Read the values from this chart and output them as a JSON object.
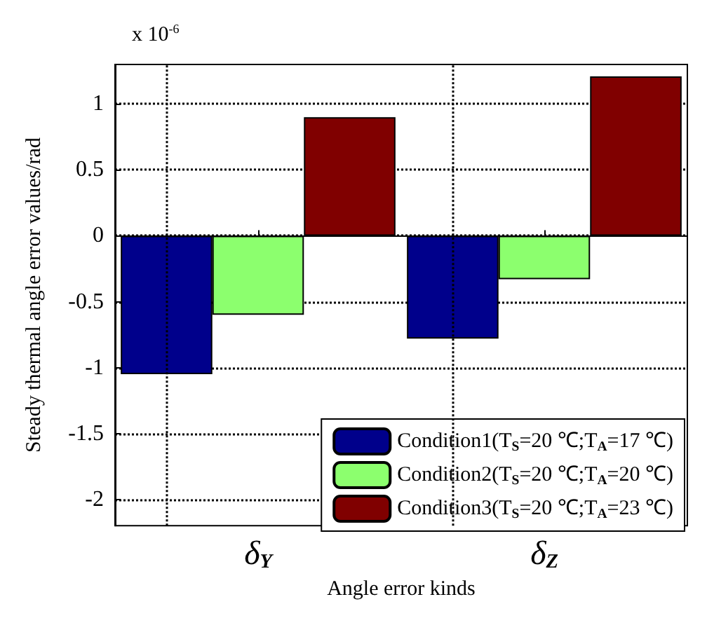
{
  "chart_data": {
    "type": "bar",
    "xlabel": "Angle error kinds",
    "ylabel": "Steady thermal angle error values/rad",
    "annotations": [
      "x 10$^{-6}$"
    ],
    "categories": [
      "δ$_{Y}$",
      "δ$_{Z}$"
    ],
    "series": [
      {
        "name": "Condition1(T$_{S}$=20 ℃;T$_{A}$=17 ℃)",
        "color": "#00008b",
        "values": [
          -1.05,
          -0.78
        ]
      },
      {
        "name": "Condition2(T$_{S}$=20 ℃;T$_{A}$=20 ℃)",
        "color": "#8cff6e",
        "values": [
          -0.6,
          -0.33
        ]
      },
      {
        "name": "Condition3(T$_{S}$=20 ℃;T$_{A}$=23 ℃)",
        "color": "#800000",
        "values": [
          0.9,
          1.21
        ]
      }
    ],
    "ylim": [
      -2.2,
      1.3
    ],
    "yticks": [
      -2,
      -1.5,
      -1,
      -0.5,
      0,
      0.5,
      1
    ],
    "grid": true,
    "legend": "bottom right"
  }
}
